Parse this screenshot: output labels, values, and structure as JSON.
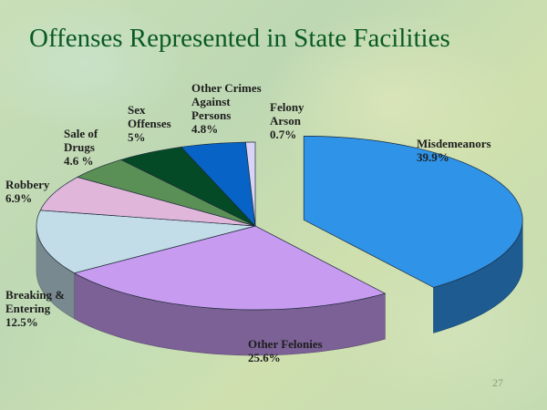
{
  "slide": {
    "title": "Offenses Represented in State Facilities",
    "page_number": "27"
  },
  "chart_data": {
    "type": "pie",
    "title": "Offenses Represented in State Facilities",
    "three_d": true,
    "start_direction": "clockwise from top",
    "slices": [
      {
        "lines": [
          "Misdemeanors",
          "39.9%"
        ],
        "value": 39.9,
        "color": "#2f93e8",
        "exploded": true
      },
      {
        "lines": [
          "Other Felonies",
          "25.6%"
        ],
        "value": 25.6,
        "color": "#c79cf0",
        "exploded": false
      },
      {
        "lines": [
          "Breaking &",
          "Entering",
          "12.5%"
        ],
        "value": 12.5,
        "color": "#c3dde8",
        "exploded": false
      },
      {
        "lines": [
          "Robbery",
          "6.9%"
        ],
        "value": 6.9,
        "color": "#e0b6da",
        "exploded": false
      },
      {
        "lines": [
          "Sale of",
          "Drugs",
          "4.6 %"
        ],
        "value": 4.6,
        "color": "#5a8f55",
        "exploded": false
      },
      {
        "lines": [
          "Sex",
          "Offenses",
          "5%"
        ],
        "value": 5.0,
        "color": "#054a26",
        "exploded": false
      },
      {
        "lines": [
          "Other Crimes",
          "Against",
          "Persons",
          "4.8%"
        ],
        "value": 4.8,
        "color": "#0863c6",
        "exploded": false
      },
      {
        "lines": [
          "Felony",
          "Arson",
          "0.7%"
        ],
        "value": 0.7,
        "color": "#d8d4f8",
        "exploded": false
      }
    ]
  }
}
